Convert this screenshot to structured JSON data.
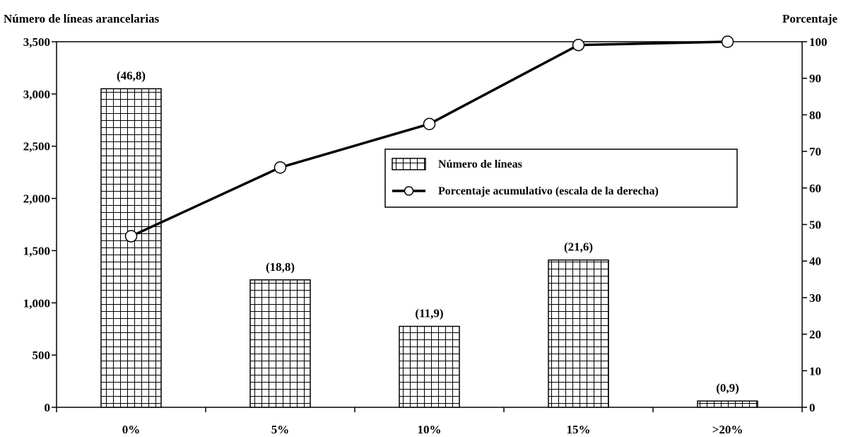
{
  "chart_data": {
    "type": "bar",
    "categories": [
      "0%",
      "5%",
      "10%",
      "15%",
      ">20%"
    ],
    "values": [
      3050,
      1220,
      775,
      1410,
      60
    ],
    "data_labels": [
      "(46,8)",
      "(18,8)",
      "(11,9)",
      "(21,6)",
      "(0,9)"
    ],
    "ylabel": "Número de líneas arancelarias",
    "y2label": "Porcentaje",
    "ylim": [
      0,
      3500
    ],
    "y_ticks": [
      "0",
      "500",
      "1,000",
      "1,500",
      "2,000",
      "2,500",
      "3,000",
      "3,500"
    ],
    "y2lim": [
      0,
      100
    ],
    "y2_ticks": [
      "0",
      "10",
      "20",
      "30",
      "40",
      "50",
      "60",
      "70",
      "80",
      "90",
      "100"
    ],
    "series": [
      {
        "name": "Número de líneas",
        "type": "bar",
        "pattern": "grid",
        "values": [
          3050,
          1220,
          775,
          1410,
          60
        ]
      },
      {
        "name": "Porcentaje acumulativo (escala de la derecha)",
        "type": "line",
        "axis": "right",
        "values": [
          46.8,
          65.6,
          77.5,
          99.1,
          100
        ]
      }
    ],
    "legend_position": "center-right",
    "grid": false,
    "colors": {
      "bar_fill": "#ffffff",
      "bar_stroke": "#000000",
      "line": "#000000",
      "marker_fill": "#ffffff"
    }
  }
}
